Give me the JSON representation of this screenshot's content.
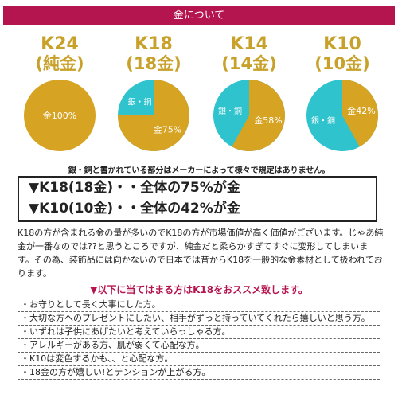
{
  "header": {
    "title": "金について"
  },
  "karats": [
    {
      "code": "K24",
      "name": "(純金)",
      "gold_label": "金100%",
      "other_label": "",
      "gold_pct": 100
    },
    {
      "code": "K18",
      "name": "(18金)",
      "gold_label": "金75%",
      "other_label": "銀・銅",
      "gold_pct": 75
    },
    {
      "code": "K14",
      "name": "(14金)",
      "gold_label": "金58%",
      "other_label": "銀・銅",
      "gold_pct": 58
    },
    {
      "code": "K10",
      "name": "(10金)",
      "gold_label": "金42%",
      "other_label": "銀・銅",
      "gold_pct": 42
    }
  ],
  "colors": {
    "gold": "#d6a322",
    "other": "#2ec3cd",
    "accent": "#b5154f"
  },
  "note": "銀・銅と書かれている部分はメーカーによって様々で規定はありません。",
  "highlight": {
    "line1": "▼K18(18金)・・全体の75%が金",
    "line2": "▼K10(10金)・・全体の42%が金"
  },
  "paragraph": "K18の方が含まれる金の量が多いのでK18の方が市場価値が高く価値がございます。じゃあ純金が一番なのでは??と思うところですが、純金だと柔らかすぎてすぐに変形してしまいます。その為、装飾品には向かないので日本では昔からK18を一般的な金素材として扱われております。",
  "recommend": "▼以下に当てはまる方はK18をおススメ致します。",
  "list": [
    "・お守りとして長く大事にした方。",
    "・大切な方へのプレゼントにしたい、相手がずっと持っていてくれたら嬉しいと思う方。",
    "・いずれは子供にあげたいと考えていらっしゃる方。",
    "・アレルギーがある方、肌が弱くて心配な方。",
    "・K10は変色するかも、、と心配な方。",
    "・18金の方が嬉しい!とテンションが上がる方。"
  ]
}
